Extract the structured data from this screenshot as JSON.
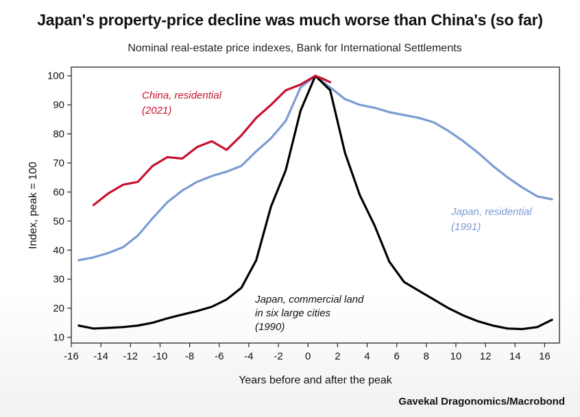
{
  "chart_data": {
    "type": "line",
    "title": "Japan's property-price decline was much worse than China's (so far)",
    "subtitle": "Nominal real-estate price indexes, Bank for International Settlements",
    "xlabel": "Years before and after the peak",
    "ylabel": "Index, peak = 100",
    "xlim": [
      -16,
      17
    ],
    "ylim": [
      8,
      103
    ],
    "x_ticks": [
      -16,
      -14,
      -12,
      -10,
      -8,
      -6,
      -4,
      -2,
      0,
      2,
      4,
      6,
      8,
      10,
      12,
      14,
      16
    ],
    "y_ticks": [
      10,
      20,
      30,
      40,
      50,
      60,
      70,
      80,
      90,
      100
    ],
    "grid": false,
    "series": [
      {
        "name": "China, residential (2021)",
        "color": "#c8102e",
        "label_lines": [
          "China, residential",
          "(2021)"
        ],
        "x": [
          -14.5,
          -13.5,
          -12.5,
          -11.5,
          -10.5,
          -9.5,
          -8.5,
          -7.5,
          -6.5,
          -5.5,
          -4.5,
          -3.5,
          -2.5,
          -1.5,
          -0.5,
          0.5,
          1.0,
          1.5
        ],
        "y": [
          55.5,
          59.5,
          62.5,
          63.5,
          69,
          72,
          71.5,
          75.5,
          77.5,
          74.5,
          79.5,
          85.5,
          90,
          95,
          97,
          100,
          99,
          97.8
        ]
      },
      {
        "name": "Japan, residential (1991)",
        "color": "#7a9bd2",
        "label_lines": [
          "Japan, residential",
          "(1991)"
        ],
        "x": [
          -15.5,
          -14.5,
          -13.5,
          -12.5,
          -11.5,
          -10.5,
          -9.5,
          -8.5,
          -7.5,
          -6.5,
          -5.5,
          -4.5,
          -3.5,
          -2.5,
          -1.5,
          -0.5,
          0.5,
          1.5,
          2.5,
          3.5,
          4.5,
          5.5,
          6.5,
          7.5,
          8.5,
          9.5,
          10.5,
          11.5,
          12.5,
          13.5,
          14.5,
          15.5,
          16.5
        ],
        "y": [
          36.5,
          37.5,
          39,
          41,
          45,
          51,
          56.5,
          60.5,
          63.5,
          65.5,
          67,
          69,
          74,
          78.5,
          84.5,
          96,
          100,
          96,
          92,
          90,
          89,
          87.5,
          86.5,
          85.5,
          84,
          81,
          77.5,
          73.5,
          69,
          65,
          61.5,
          58.5,
          57.5
        ]
      },
      {
        "name": "Japan, commercial land in six large cities (1990)",
        "color": "#000000",
        "label_lines": [
          "Japan, commercial land",
          "in six large cities",
          "(1990)"
        ],
        "x": [
          -15.5,
          -14.5,
          -13.5,
          -12.5,
          -11.5,
          -10.5,
          -9.5,
          -8.5,
          -7.5,
          -6.5,
          -5.5,
          -4.5,
          -3.5,
          -2.5,
          -1.5,
          -0.5,
          0.5,
          1.5,
          2.5,
          3.5,
          4.5,
          5.5,
          6.5,
          7.5,
          8.5,
          9.5,
          10.5,
          11.5,
          12.5,
          13.5,
          14.5,
          15.5,
          16.5
        ],
        "y": [
          14,
          13,
          13.2,
          13.5,
          14,
          15,
          16.5,
          17.8,
          19,
          20.5,
          23,
          27,
          36.5,
          55,
          67.5,
          88,
          100,
          95,
          73.5,
          59,
          48.5,
          36,
          29,
          26,
          23,
          20,
          17.5,
          15.5,
          14,
          13,
          12.8,
          13.5,
          16
        ]
      }
    ]
  },
  "source": "Gavekal Dragonomics/Macrobond"
}
